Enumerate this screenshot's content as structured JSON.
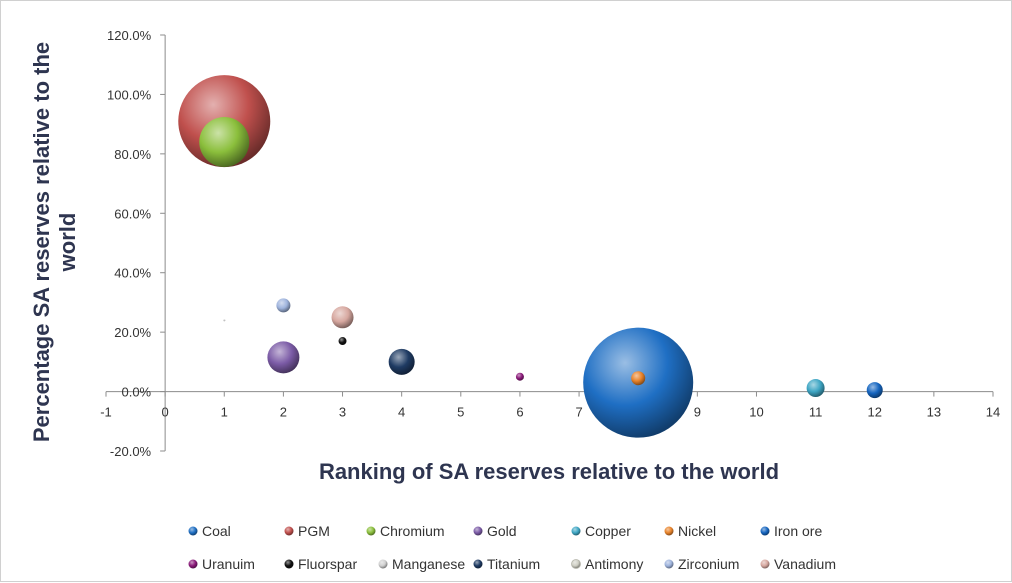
{
  "chart_data": {
    "type": "bubble",
    "xlabel": "Ranking of SA reserves relative to the world",
    "ylabel": "Percentage SA reserves relative to the world",
    "xlim": [
      -1,
      14
    ],
    "ylim": [
      -0.2,
      1.2
    ],
    "x_ticks": [
      "-1",
      "0",
      "1",
      "2",
      "3",
      "4",
      "5",
      "6",
      "7",
      "8",
      "9",
      "10",
      "11",
      "12",
      "13",
      "14"
    ],
    "y_ticks": [
      "-20.0%",
      "0.0%",
      "20.0%",
      "40.0%",
      "60.0%",
      "80.0%",
      "100.0%",
      "120.0%"
    ],
    "legend_position": "bottom",
    "series": [
      {
        "name": "Coal",
        "x": 8,
        "y": 0.03,
        "size": 55,
        "color": "#1f6fc4"
      },
      {
        "name": "PGM",
        "x": 1,
        "y": 0.91,
        "size": 46,
        "color": "#c0504d"
      },
      {
        "name": "Chromium",
        "x": 1,
        "y": 0.84,
        "size": 25,
        "color": "#8bbf3c"
      },
      {
        "name": "Gold",
        "x": 2,
        "y": 0.115,
        "size": 16,
        "color": "#7b5ba6"
      },
      {
        "name": "Copper",
        "x": 11,
        "y": 0.012,
        "size": 9,
        "color": "#3ea6c4"
      },
      {
        "name": "Nickel",
        "x": 8,
        "y": 0.045,
        "size": 7,
        "color": "#e8832a"
      },
      {
        "name": "Iron ore",
        "x": 12,
        "y": 0.005,
        "size": 8,
        "color": "#1565c0"
      },
      {
        "name": "Uranuim",
        "x": 6,
        "y": 0.05,
        "size": 4,
        "color": "#8b1a7a"
      },
      {
        "name": "Fluorspar",
        "x": 3,
        "y": 0.17,
        "size": 4,
        "color": "#111111"
      },
      {
        "name": "Manganese",
        "x": 1,
        "y": 0.24,
        "size": 1,
        "color": "#d0d0d0"
      },
      {
        "name": "Titanium",
        "x": 4,
        "y": 0.1,
        "size": 13,
        "color": "#1f3b63"
      },
      {
        "name": "Antimony",
        "x": 5,
        "y": 0.0,
        "size": 0,
        "color": "#cfcfc4"
      },
      {
        "name": "Zirconium",
        "x": 2,
        "y": 0.29,
        "size": 7,
        "color": "#9fb4dd"
      },
      {
        "name": "Vanadium",
        "x": 3,
        "y": 0.25,
        "size": 11,
        "color": "#d7a8a0"
      }
    ]
  }
}
